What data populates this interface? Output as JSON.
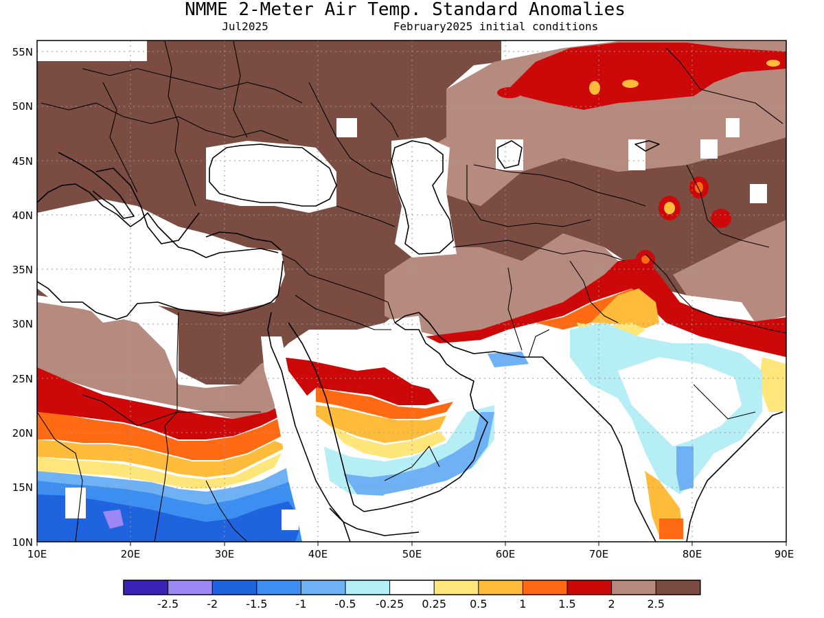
{
  "title": "NMME 2-Meter Air Temp. Standard Anomalies",
  "valid_month": "Jul2025",
  "init_label": "February2025 initial conditions",
  "map": {
    "lon_range": [
      10,
      90
    ],
    "lat_range": [
      10,
      56
    ],
    "lon_ticks": [
      "10E",
      "20E",
      "30E",
      "40E",
      "50E",
      "60E",
      "70E",
      "80E",
      "90E"
    ],
    "lat_ticks": [
      "10N",
      "15N",
      "20N",
      "25N",
      "30N",
      "35N",
      "40N",
      "45N",
      "50N",
      "55N"
    ],
    "grid": "dotted"
  },
  "colorbar": {
    "colors": [
      "#3a24b8",
      "#9d87f5",
      "#1f63de",
      "#3c8ef0",
      "#6fb1f5",
      "#b6eef6",
      "#ffffff",
      "#ffe67a",
      "#ffbb3a",
      "#ff6a12",
      "#cc0808",
      "#b68a7e",
      "#7a4c42"
    ],
    "labels": [
      "-2.5",
      "-2",
      "-1.5",
      "-1",
      "-0.5",
      "-0.25",
      "0.25",
      "0.5",
      "1",
      "1.5",
      "2",
      "2.5"
    ]
  },
  "chart_data": {
    "type": "heatmap",
    "title": "NMME 2-Meter Air Temp. Standard Anomalies",
    "subtitle": "Jul2025 / February2025 initial conditions",
    "x_range": [
      10,
      90
    ],
    "y_range": [
      10,
      56
    ],
    "levels": [
      -2.5,
      -2,
      -1.5,
      -1,
      -0.5,
      -0.25,
      0.25,
      0.5,
      1,
      1.5,
      2,
      2.5
    ],
    "regions": [
      {
        "area": "Europe, Turkey, Caucasus, Middle East interior",
        "anomaly": "> 2.5"
      },
      {
        "area": "Russia / Kazakhstan northern belt (45N-56N, 60E-85E)",
        "anomaly": "2 to 2.5+"
      },
      {
        "area": "Central Asia, Iran, Afghanistan",
        "anomaly": "2 to 2.5"
      },
      {
        "area": "Northern Pakistan / northern India / Himalaya",
        "anomaly": "1.5 to 2.5"
      },
      {
        "area": "Central India",
        "anomaly": "-0.5 to 0.25"
      },
      {
        "area": "Southern Arabian Peninsula",
        "anomaly": "0.5 to 2"
      },
      {
        "area": "Yemen / Oman coast",
        "anomaly": "-1 to -0.25"
      },
      {
        "area": "Sahel (10N-17N, 10E-45E)",
        "anomaly": "-2 to -0.5"
      },
      {
        "area": "Sahara (20N-25N)",
        "anomaly": "0.5 to 2"
      },
      {
        "area": "Mediterranean Sea and Black Sea",
        "anomaly": "near 0"
      }
    ]
  }
}
